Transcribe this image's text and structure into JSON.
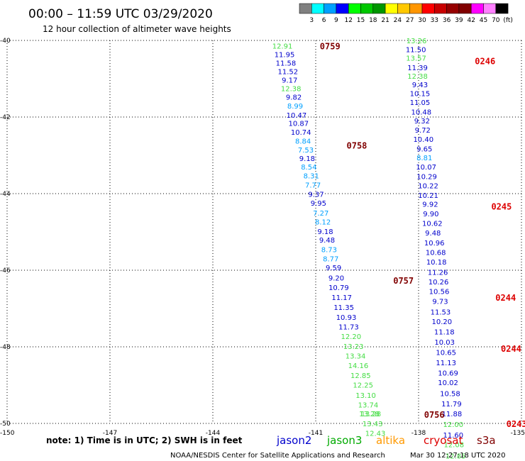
{
  "title": "00:00 – 11:59 UTC 03/29/2020",
  "subtitle": "12 hour collection of altimeter wave heights",
  "colorbar": {
    "labels": [
      "3",
      "6",
      "9",
      "12",
      "15",
      "18",
      "21",
      "24",
      "27",
      "30",
      "33",
      "36",
      "39",
      "42",
      "45",
      "70",
      "(ft)"
    ],
    "colors": [
      "#808080",
      "#00ffff",
      "#00a0ff",
      "#0000ff",
      "#00ff00",
      "#00c800",
      "#009600",
      "#ffff00",
      "#ffc800",
      "#ff9600",
      "#ff0000",
      "#c80000",
      "#960000",
      "#800000",
      "#ff00ff",
      "#ff80ff",
      "#000000"
    ]
  },
  "note": "note:  1) Time is in UTC; 2) SWH is in feet",
  "satellites": [
    {
      "name": "jason2",
      "color": "#0000cc"
    },
    {
      "name": "jason3",
      "color": "#00aa00"
    },
    {
      "name": "altika",
      "color": "#ff9900"
    },
    {
      "name": "cryosat",
      "color": "#dd0000"
    },
    {
      "name": "s3a",
      "color": "#800000"
    }
  ],
  "footer_left": "NOAA/NESDIS Center for Satellite Applications and Research",
  "footer_right": "Mar 30 12:27:18 UTC 2020",
  "chart_data": {
    "type": "scatter",
    "xlim": [
      -150,
      -135
    ],
    "ylim": [
      -50,
      -40
    ],
    "xticks": [
      "-150",
      "-147",
      "-144",
      "-141",
      "-138",
      "-135"
    ],
    "yticks": [
      "-40",
      "-42",
      "-44",
      "-46",
      "-48",
      "-50"
    ],
    "grid": true,
    "pass_labels": [
      {
        "text": "0759",
        "x": -140.88,
        "y": -40.14,
        "color": "#800000"
      },
      {
        "text": "0758",
        "x": -140.1,
        "y": -42.73,
        "color": "#800000"
      },
      {
        "text": "0757",
        "x": -138.74,
        "y": -46.26,
        "color": "#800000"
      },
      {
        "text": "0756",
        "x": -137.84,
        "y": -49.76,
        "color": "#800000"
      },
      {
        "text": "0246",
        "x": -136.36,
        "y": -40.53,
        "color": "#dd0000"
      },
      {
        "text": "0245",
        "x": -135.88,
        "y": -44.32,
        "color": "#dd0000"
      },
      {
        "text": "0244",
        "x": -135.76,
        "y": -46.7,
        "color": "#dd0000"
      },
      {
        "text": "0244",
        "x": -135.6,
        "y": -48.04,
        "color": "#dd0000"
      },
      {
        "text": "0243",
        "x": -135.44,
        "y": -50.0,
        "color": "#dd0000"
      }
    ],
    "series": [
      {
        "name": "s3a 0759-0756",
        "points": [
          {
            "x": -141.97,
            "y": -40.14,
            "v": "12.91"
          },
          {
            "x": -141.91,
            "y": -40.36,
            "v": "11.95"
          },
          {
            "x": -141.87,
            "y": -40.58,
            "v": "11.58"
          },
          {
            "x": -141.81,
            "y": -40.81,
            "v": "11.52"
          },
          {
            "x": -141.76,
            "y": -41.03,
            "v": "9.17"
          },
          {
            "x": -141.72,
            "y": -41.25,
            "v": "12.38"
          },
          {
            "x": -141.64,
            "y": -41.47,
            "v": "9.82"
          },
          {
            "x": -141.6,
            "y": -41.7,
            "v": "8.99"
          },
          {
            "x": -141.56,
            "y": -41.94,
            "v": "10.47"
          },
          {
            "x": -141.5,
            "y": -42.16,
            "v": "10.87"
          },
          {
            "x": -141.43,
            "y": -42.39,
            "v": "10.74"
          },
          {
            "x": -141.37,
            "y": -42.62,
            "v": "8.84"
          },
          {
            "x": -141.29,
            "y": -42.85,
            "v": "7.53"
          },
          {
            "x": -141.25,
            "y": -43.07,
            "v": "9.18"
          },
          {
            "x": -141.2,
            "y": -43.3,
            "v": "8.54"
          },
          {
            "x": -141.13,
            "y": -43.53,
            "v": "8.31"
          },
          {
            "x": -141.08,
            "y": -43.77,
            "v": "7.77"
          },
          {
            "x": -140.99,
            "y": -44.01,
            "v": "9.37"
          },
          {
            "x": -140.92,
            "y": -44.24,
            "v": "9.95"
          },
          {
            "x": -140.85,
            "y": -44.5,
            "v": "7.27"
          },
          {
            "x": -140.79,
            "y": -44.73,
            "v": "8.12"
          },
          {
            "x": -140.72,
            "y": -44.98,
            "v": "9.18"
          },
          {
            "x": -140.67,
            "y": -45.2,
            "v": "9.48"
          },
          {
            "x": -140.61,
            "y": -45.45,
            "v": "8.73"
          },
          {
            "x": -140.56,
            "y": -45.69,
            "v": "8.77"
          },
          {
            "x": -140.48,
            "y": -45.93,
            "v": "9.59"
          },
          {
            "x": -140.4,
            "y": -46.19,
            "v": "9.20"
          },
          {
            "x": -140.33,
            "y": -46.44,
            "v": "10.79"
          },
          {
            "x": -140.24,
            "y": -46.7,
            "v": "11.17"
          },
          {
            "x": -140.18,
            "y": -46.96,
            "v": "11.35"
          },
          {
            "x": -140.11,
            "y": -47.22,
            "v": "10.93"
          },
          {
            "x": -140.04,
            "y": -47.47,
            "v": "11.73"
          },
          {
            "x": -139.97,
            "y": -47.72,
            "v": "12.20"
          },
          {
            "x": -139.9,
            "y": -47.98,
            "v": "13.23"
          },
          {
            "x": -139.84,
            "y": -48.23,
            "v": "13.34"
          },
          {
            "x": -139.76,
            "y": -48.48,
            "v": "14.16"
          },
          {
            "x": -139.69,
            "y": -48.74,
            "v": "12.85"
          },
          {
            "x": -139.62,
            "y": -48.99,
            "v": "12.25"
          },
          {
            "x": -139.54,
            "y": -49.26,
            "v": "13.10"
          },
          {
            "x": -139.47,
            "y": -49.51,
            "v": "13.74"
          },
          {
            "x": -139.44,
            "y": -49.74,
            "v": "13.28"
          },
          {
            "x": -139.39,
            "y": -49.74,
            "v": "13.28"
          },
          {
            "x": -139.34,
            "y": -50.0,
            "v": "13.43"
          },
          {
            "x": -139.26,
            "y": -50.25,
            "v": "12.43"
          }
        ]
      },
      {
        "name": "cryosat 0246-0243",
        "points": [
          {
            "x": -138.06,
            "y": -40.0,
            "v": "13.26"
          },
          {
            "x": -138.08,
            "y": -40.23,
            "v": "11.50"
          },
          {
            "x": -138.07,
            "y": -40.45,
            "v": "13.57"
          },
          {
            "x": -138.03,
            "y": -40.7,
            "v": "11.39"
          },
          {
            "x": -138.03,
            "y": -40.93,
            "v": "12.38"
          },
          {
            "x": -137.96,
            "y": -41.15,
            "v": "9.43"
          },
          {
            "x": -137.96,
            "y": -41.38,
            "v": "10.15"
          },
          {
            "x": -137.96,
            "y": -41.61,
            "v": "11.05"
          },
          {
            "x": -137.92,
            "y": -41.86,
            "v": "10.48"
          },
          {
            "x": -137.9,
            "y": -42.09,
            "v": "9.32"
          },
          {
            "x": -137.88,
            "y": -42.33,
            "v": "9.72"
          },
          {
            "x": -137.86,
            "y": -42.57,
            "v": "10.40"
          },
          {
            "x": -137.83,
            "y": -42.82,
            "v": "9.65"
          },
          {
            "x": -137.83,
            "y": -43.06,
            "v": "8.81"
          },
          {
            "x": -137.78,
            "y": -43.3,
            "v": "10.07"
          },
          {
            "x": -137.76,
            "y": -43.55,
            "v": "10.29"
          },
          {
            "x": -137.72,
            "y": -43.79,
            "v": "10.22"
          },
          {
            "x": -137.72,
            "y": -44.04,
            "v": "10.21"
          },
          {
            "x": -137.66,
            "y": -44.27,
            "v": "9.92"
          },
          {
            "x": -137.64,
            "y": -44.52,
            "v": "9.90"
          },
          {
            "x": -137.6,
            "y": -44.77,
            "v": "10.62"
          },
          {
            "x": -137.58,
            "y": -45.02,
            "v": "9.48"
          },
          {
            "x": -137.54,
            "y": -45.28,
            "v": "10.96"
          },
          {
            "x": -137.5,
            "y": -45.53,
            "v": "10.68"
          },
          {
            "x": -137.48,
            "y": -45.78,
            "v": "10.18"
          },
          {
            "x": -137.44,
            "y": -46.05,
            "v": "11.26"
          },
          {
            "x": -137.42,
            "y": -46.3,
            "v": "10.26"
          },
          {
            "x": -137.4,
            "y": -46.55,
            "v": "10.56"
          },
          {
            "x": -137.37,
            "y": -46.81,
            "v": "9.73"
          },
          {
            "x": -137.36,
            "y": -47.08,
            "v": "11.53"
          },
          {
            "x": -137.32,
            "y": -47.33,
            "v": "10.20"
          },
          {
            "x": -137.25,
            "y": -47.6,
            "v": "11.18"
          },
          {
            "x": -137.24,
            "y": -47.87,
            "v": "10.03"
          },
          {
            "x": -137.2,
            "y": -48.14,
            "v": "10.65"
          },
          {
            "x": -137.2,
            "y": -48.41,
            "v": "11.13"
          },
          {
            "x": -137.14,
            "y": -48.68,
            "v": "10.69"
          },
          {
            "x": -137.14,
            "y": -48.93,
            "v": "10.02"
          },
          {
            "x": -137.08,
            "y": -49.21,
            "v": "10.58"
          },
          {
            "x": -137.04,
            "y": -49.48,
            "v": "11.79"
          },
          {
            "x": -137.03,
            "y": -49.74,
            "v": "11.88"
          },
          {
            "x": -136.99,
            "y": -50.02,
            "v": "12.00"
          },
          {
            "x": -136.99,
            "y": -50.3,
            "v": "11.60"
          },
          {
            "x": -136.97,
            "y": -50.55,
            "v": "12.08"
          },
          {
            "x": -136.92,
            "y": -50.84,
            "v": "12.85"
          }
        ]
      }
    ]
  }
}
